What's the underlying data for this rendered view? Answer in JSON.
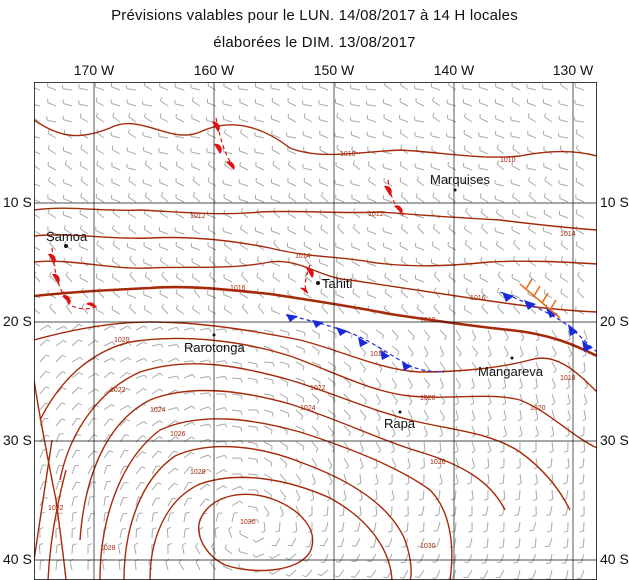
{
  "header": {
    "line1": "Prévisions valables pour le  LUN. 14/08/2017  à   14 H locales",
    "line2": "élaborées le  DIM. 13/08/2017"
  },
  "axes": {
    "longitudes": [
      "170 W",
      "160 W",
      "150 W",
      "140 W",
      "130 W"
    ],
    "latitudes_left": [
      "10 S",
      "20 S",
      "30 S",
      "40 S"
    ],
    "latitudes_right": [
      "10 S",
      "20 S",
      "30 S",
      "40 S"
    ]
  },
  "places": [
    {
      "name": "Samoa"
    },
    {
      "name": "Marquises"
    },
    {
      "name": "Tahiti"
    },
    {
      "name": "Rarotonga"
    },
    {
      "name": "Mangareva"
    },
    {
      "name": "Rapa"
    }
  ],
  "isobar_labels": [
    "1010",
    "1010",
    "1012",
    "1012",
    "1014",
    "1014",
    "1016",
    "1016",
    "1018",
    "1018",
    "1018",
    "1020",
    "1020",
    "1020",
    "1022",
    "1022",
    "1024",
    "1024",
    "1026",
    "1026",
    "1028",
    "1028",
    "1030",
    "1030",
    "1032"
  ],
  "colors": {
    "isobar": "#a52a0a",
    "grid": "#111111",
    "wind_barb": "#aaaaaa",
    "warm_front": "#e01010",
    "cold_front": "#1a2ad8",
    "trough": "#e87020"
  }
}
